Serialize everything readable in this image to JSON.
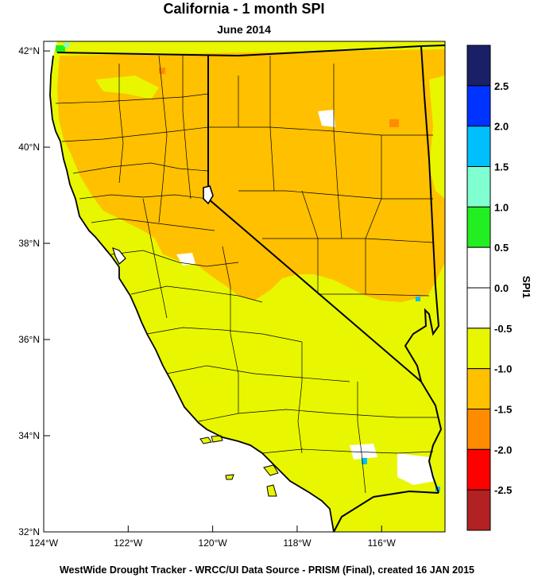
{
  "title": "California - 1 month SPI",
  "subtitle": "June 2014",
  "footer": "WestWide Drought Tracker - WRCC/UI  Data Source - PRISM (Final), created 16 JAN 2015",
  "map": {
    "lon_range": [
      -124,
      -114.5
    ],
    "lat_range": [
      32,
      42.2
    ],
    "lat_ticks": [
      {
        "lat": 42,
        "label": "42°N"
      },
      {
        "lat": 40,
        "label": "40°N"
      },
      {
        "lat": 38,
        "label": "38°N"
      },
      {
        "lat": 36,
        "label": "36°N"
      },
      {
        "lat": 34,
        "label": "34°N"
      },
      {
        "lat": 32,
        "label": "32°N"
      }
    ],
    "lon_ticks": [
      {
        "lon": -124,
        "label": "124°W"
      },
      {
        "lon": -122,
        "label": "122°W"
      },
      {
        "lon": -120,
        "label": "120°W"
      },
      {
        "lon": -118,
        "label": "118°W"
      },
      {
        "lon": -116,
        "label": "116°W"
      }
    ],
    "ocean_color": "#ffffff",
    "land_color_dry": "#ffc000",
    "land_color_moderate": "#e8f600"
  },
  "colorbar": {
    "label": "SPI1",
    "bins": [
      {
        "color": "#1a2068"
      },
      {
        "color": "#0033ff"
      },
      {
        "color": "#00bfff"
      },
      {
        "color": "#80ffd0"
      },
      {
        "color": "#22ee22"
      },
      {
        "color": "#ffffff"
      },
      {
        "color": "#ffffff"
      },
      {
        "color": "#e8f600"
      },
      {
        "color": "#ffc000"
      },
      {
        "color": "#ff8c00"
      },
      {
        "color": "#ff0000"
      },
      {
        "color": "#b22222"
      }
    ],
    "tick_labels": [
      "2.5",
      "2.0",
      "1.5",
      "1.0",
      "0.5",
      "0.0",
      "-0.5",
      "-1.0",
      "-1.5",
      "-2.0",
      "-2.5"
    ]
  }
}
